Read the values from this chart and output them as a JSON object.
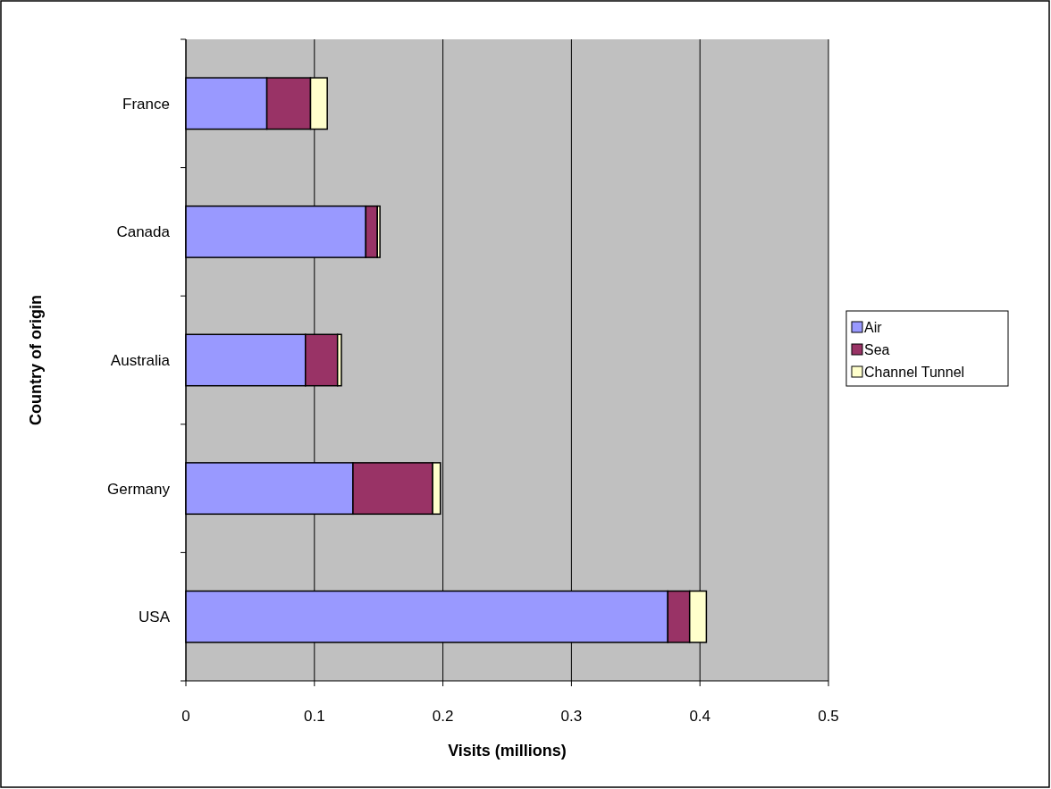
{
  "chart_data": {
    "type": "bar",
    "orientation": "horizontal",
    "stacked": true,
    "xlabel": "Visits (millions)",
    "ylabel": "Country of origin",
    "categories": [
      "France",
      "Canada",
      "Australia",
      "Germany",
      "USA"
    ],
    "series": [
      {
        "name": "Air",
        "color": "#9999ff",
        "values": [
          0.063,
          0.14,
          0.093,
          0.13,
          0.375
        ]
      },
      {
        "name": "Sea",
        "color": "#993366",
        "values": [
          0.034,
          0.009,
          0.025,
          0.062,
          0.017
        ]
      },
      {
        "name": "Channel Tunnel",
        "color": "#ffffcc",
        "values": [
          0.013,
          0.002,
          0.003,
          0.006,
          0.013
        ]
      }
    ],
    "xlim": [
      0,
      0.5
    ],
    "xticks": [
      0,
      0.1,
      0.2,
      0.3,
      0.4,
      0.5
    ],
    "grid": "x",
    "legend": "right"
  }
}
